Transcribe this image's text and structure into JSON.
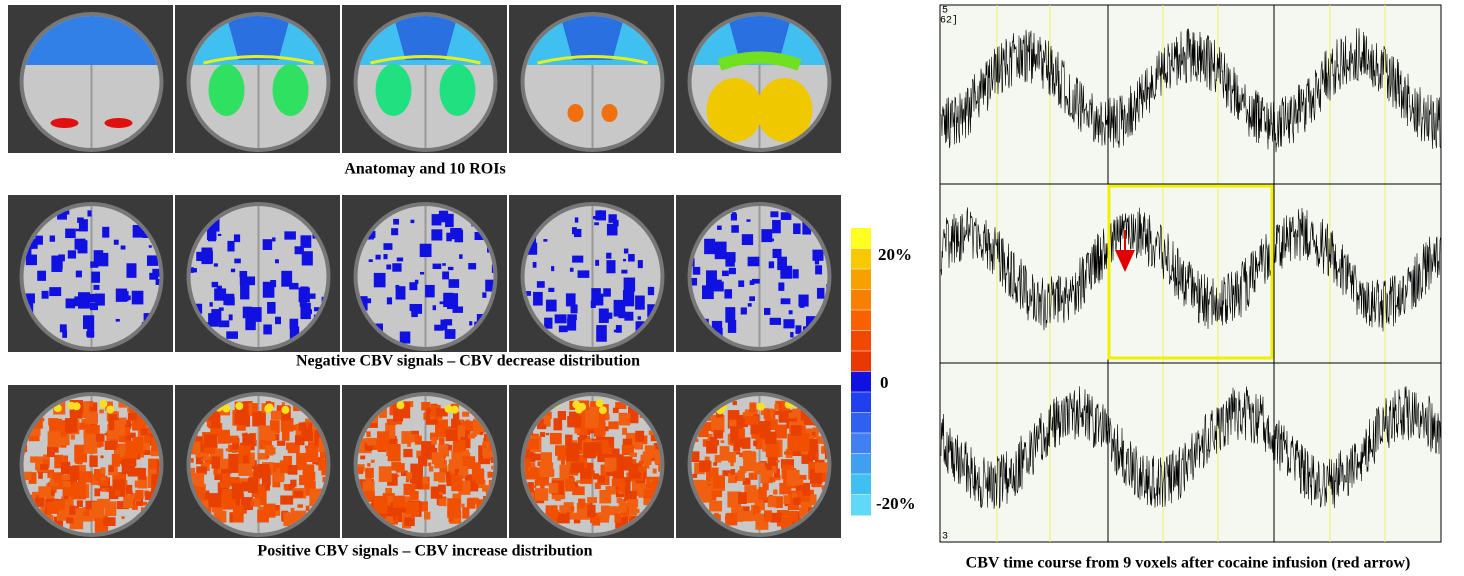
{
  "panels": [
    {
      "caption": "Anatomay and 10 ROIs"
    },
    {
      "caption": "Negative CBV signals – CBV decrease distribution"
    },
    {
      "caption": "Positive CBV signals – CBV increase distribution"
    }
  ],
  "colorbar": {
    "labels": [
      "20%",
      "0",
      "-20%"
    ],
    "colors": [
      "#ffff20",
      "#f8c800",
      "#f8a000",
      "#f88000",
      "#f86000",
      "#f04800",
      "#e83800",
      "#1010e0",
      "#2040f0",
      "#3060f0",
      "#4080f0",
      "#40a0f0",
      "#40c0f0",
      "#60d8f8"
    ]
  },
  "timecourse": {
    "corner_labels": [
      "5",
      "62]",
      "3"
    ],
    "caption": "CBV time course from 9 voxels after cocaine infusion (red arrow)"
  }
}
